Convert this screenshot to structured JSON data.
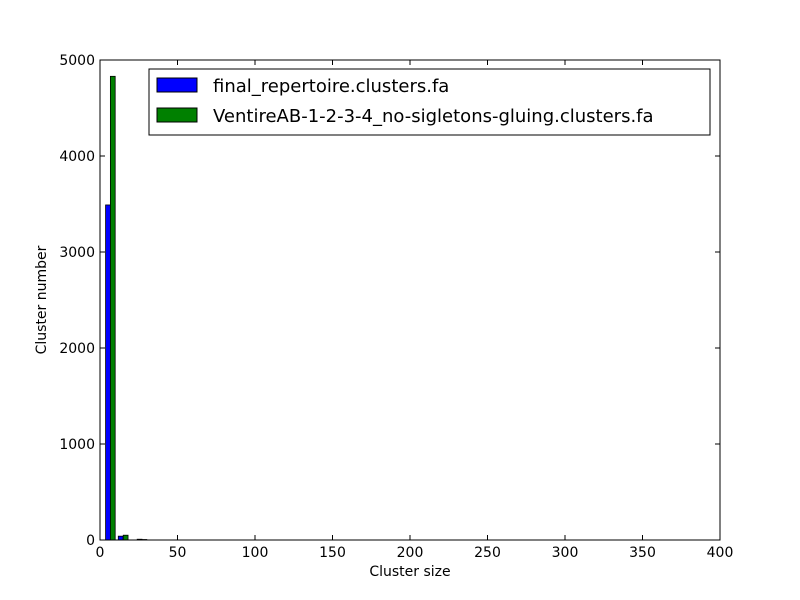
{
  "chart_data": {
    "type": "bar",
    "xlabel": "Cluster size",
    "ylabel": "Cluster number",
    "xlim": [
      0,
      400
    ],
    "ylim": [
      0,
      5000
    ],
    "xticks": [
      "0",
      "50",
      "100",
      "150",
      "200",
      "250",
      "300",
      "350",
      "400"
    ],
    "yticks": [
      "0",
      "1000",
      "2000",
      "3000",
      "4000",
      "5000"
    ],
    "legend_position": "top-right",
    "grid": false,
    "series": [
      {
        "name": "final_repertoire.clusters.fa",
        "color": "#0000ff",
        "bins": [
          {
            "x": 3.6,
            "width": 3.1,
            "value": 3490
          },
          {
            "x": 11.8,
            "width": 3.1,
            "value": 40
          },
          {
            "x": 24.0,
            "width": 3.1,
            "value": 8
          }
        ]
      },
      {
        "name": "VentireAB-1-2-3-4_no-sigletons-gluing.clusters.fa",
        "color": "#008000",
        "bins": [
          {
            "x": 6.7,
            "width": 3.1,
            "value": 4830
          },
          {
            "x": 15.0,
            "width": 3.1,
            "value": 50
          },
          {
            "x": 27.1,
            "width": 3.1,
            "value": 5
          }
        ]
      }
    ]
  }
}
